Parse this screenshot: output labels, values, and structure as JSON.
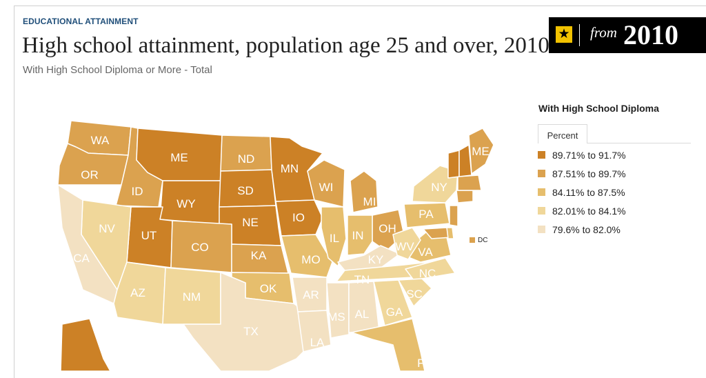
{
  "header": {
    "kicker": "EDUCATIONAL ATTAINMENT",
    "title": "High school attainment, population age 25 and over, 2010",
    "subtitle": "With High School Diploma or More - Total"
  },
  "badge": {
    "from": "from",
    "year": "2010",
    "icon": "star-icon"
  },
  "legend": {
    "title": "With High School Diploma",
    "tab": "Percent",
    "items": [
      {
        "label": "89.71% to 91.7%",
        "color": "#cc8126"
      },
      {
        "label": "87.51% to 89.7%",
        "color": "#dba24f"
      },
      {
        "label": "84.11% to 87.5%",
        "color": "#e6be6d"
      },
      {
        "label": "82.01% to 84.1%",
        "color": "#f0d79a"
      },
      {
        "label": "79.6% to 82.0%",
        "color": "#f3e1c2"
      }
    ]
  },
  "dc": {
    "label": "DC",
    "color": "#dba24f"
  },
  "states": {
    "WA": {
      "label": "WA",
      "bin": 1
    },
    "OR": {
      "label": "OR",
      "bin": 1
    },
    "ID": {
      "label": "ID",
      "bin": 1
    },
    "ME": {
      "label": "ME",
      "bin": 0
    },
    "WY": {
      "label": "WY",
      "bin": 0
    },
    "ND": {
      "label": "ND",
      "bin": 1
    },
    "SD": {
      "label": "SD",
      "bin": 0
    },
    "NE": {
      "label": "NE",
      "bin": 0
    },
    "MN": {
      "label": "MN",
      "bin": 0
    },
    "IO": {
      "label": "IO",
      "bin": 0
    },
    "WI": {
      "label": "WI",
      "bin": 1
    },
    "MI": {
      "label": "MI",
      "bin": 1
    },
    "OH": {
      "label": "OH",
      "bin": 1
    },
    "UT": {
      "label": "UT",
      "bin": 0
    },
    "CO": {
      "label": "CO",
      "bin": 1
    },
    "KA": {
      "label": "KA",
      "bin": 1
    },
    "NV": {
      "label": "NV",
      "bin": 3
    },
    "CA": {
      "label": "CA",
      "bin": 4
    },
    "AZ": {
      "label": "AZ",
      "bin": 3
    },
    "NM": {
      "label": "NM",
      "bin": 3
    },
    "OK": {
      "label": "OK",
      "bin": 2
    },
    "TX": {
      "label": "TX",
      "bin": 4
    },
    "MO": {
      "label": "MO",
      "bin": 2
    },
    "AR": {
      "label": "AR",
      "bin": 4
    },
    "LA": {
      "label": "LA",
      "bin": 4
    },
    "MS": {
      "label": "MS",
      "bin": 4
    },
    "AL": {
      "label": "AL",
      "bin": 4
    },
    "GA": {
      "label": "GA",
      "bin": 3
    },
    "FL": {
      "label": "FL",
      "bin": 2
    },
    "IL": {
      "label": "IL",
      "bin": 2
    },
    "IN": {
      "label": "IN",
      "bin": 2
    },
    "KY": {
      "label": "KY",
      "bin": 4
    },
    "TN": {
      "label": "TN",
      "bin": 3
    },
    "NC": {
      "label": "NC",
      "bin": 3
    },
    "SC": {
      "label": "SC",
      "bin": 3
    },
    "VA": {
      "label": "VA",
      "bin": 2
    },
    "WV": {
      "label": "WV",
      "bin": 3
    },
    "PA": {
      "label": "PA",
      "bin": 2
    },
    "NY": {
      "label": "NY",
      "bin": 3
    },
    "NJ": {
      "label": "",
      "bin": 1
    },
    "MD": {
      "label": "",
      "bin": 1
    },
    "DE": {
      "label": "",
      "bin": 2
    },
    "CT": {
      "label": "",
      "bin": 1
    },
    "MA": {
      "label": "",
      "bin": 1
    },
    "VT": {
      "label": "",
      "bin": 0
    },
    "NH": {
      "label": "",
      "bin": 0
    },
    "MEast": {
      "label": "ME",
      "bin": 1
    },
    "AK": {
      "label": "",
      "bin": 0
    }
  }
}
